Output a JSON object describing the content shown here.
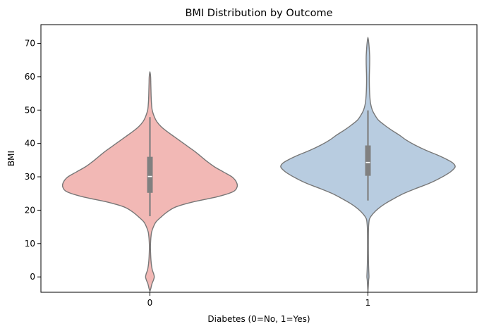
{
  "chart_data": {
    "type": "violin",
    "title": "BMI Distribution by Outcome",
    "xlabel": "Diabetes (0=No, 1=Yes)",
    "ylabel": "BMI",
    "categories": [
      "0",
      "1"
    ],
    "ylim": [
      -4.6,
      75.6
    ],
    "yticks": [
      0,
      10,
      20,
      30,
      40,
      50,
      60,
      70
    ],
    "grid": false,
    "colors": {
      "0": "#f2b8b5",
      "1": "#b8cce0",
      "outline": "#777777",
      "box": "#808080",
      "median": "#ffffff"
    },
    "violins": [
      {
        "category": "0",
        "color": "#f2b8b5",
        "box": {
          "whisker_low": 18.2,
          "q1": 25.2,
          "median": 30.1,
          "q3": 36.0,
          "whisker_high": 47.9
        },
        "profile": [
          [
            -4.3,
            0.0
          ],
          [
            -3.5,
            0.01
          ],
          [
            -2.0,
            0.024
          ],
          [
            -1.0,
            0.04
          ],
          [
            0.0,
            0.05
          ],
          [
            1.0,
            0.042
          ],
          [
            2.0,
            0.028
          ],
          [
            3.5,
            0.018
          ],
          [
            5.0,
            0.012
          ],
          [
            7.0,
            0.008
          ],
          [
            9.0,
            0.006
          ],
          [
            10.5,
            0.008
          ],
          [
            12.0,
            0.012
          ],
          [
            13.5,
            0.02
          ],
          [
            15.0,
            0.04
          ],
          [
            16.5,
            0.07
          ],
          [
            18.0,
            0.13
          ],
          [
            19.5,
            0.2
          ],
          [
            21.0,
            0.3
          ],
          [
            22.5,
            0.5
          ],
          [
            24.0,
            0.77
          ],
          [
            25.5,
            0.95
          ],
          [
            27.0,
            1.0
          ],
          [
            28.5,
            0.99
          ],
          [
            30.0,
            0.94
          ],
          [
            31.5,
            0.84
          ],
          [
            33.0,
            0.74
          ],
          [
            34.5,
            0.66
          ],
          [
            36.0,
            0.59
          ],
          [
            37.5,
            0.52
          ],
          [
            39.0,
            0.44
          ],
          [
            40.5,
            0.36
          ],
          [
            42.0,
            0.28
          ],
          [
            43.5,
            0.2
          ],
          [
            45.0,
            0.13
          ],
          [
            46.5,
            0.08
          ],
          [
            48.0,
            0.05
          ],
          [
            50.0,
            0.026
          ],
          [
            52.0,
            0.018
          ],
          [
            54.0,
            0.014
          ],
          [
            56.0,
            0.012
          ],
          [
            58.0,
            0.01
          ],
          [
            60.0,
            0.008
          ],
          [
            61.5,
            0.0
          ]
        ]
      },
      {
        "category": "1",
        "color": "#b8cce0",
        "box": {
          "whisker_low": 22.9,
          "q1": 30.3,
          "median": 34.3,
          "q3": 39.4,
          "whisker_high": 49.9
        },
        "profile": [
          [
            -4.7,
            0.0
          ],
          [
            -3.0,
            0.004
          ],
          [
            -1.0,
            0.008
          ],
          [
            0.0,
            0.012
          ],
          [
            1.5,
            0.01
          ],
          [
            3.0,
            0.008
          ],
          [
            5.0,
            0.006
          ],
          [
            8.0,
            0.005
          ],
          [
            11.0,
            0.005
          ],
          [
            14.0,
            0.006
          ],
          [
            16.0,
            0.01
          ],
          [
            17.5,
            0.02
          ],
          [
            19.0,
            0.06
          ],
          [
            20.5,
            0.12
          ],
          [
            22.0,
            0.2
          ],
          [
            23.5,
            0.3
          ],
          [
            25.0,
            0.41
          ],
          [
            26.5,
            0.55
          ],
          [
            28.0,
            0.7
          ],
          [
            29.5,
            0.82
          ],
          [
            31.0,
            0.92
          ],
          [
            32.0,
            0.97
          ],
          [
            33.0,
            1.0
          ],
          [
            34.0,
            0.98
          ],
          [
            35.0,
            0.92
          ],
          [
            36.5,
            0.8
          ],
          [
            38.0,
            0.66
          ],
          [
            39.5,
            0.54
          ],
          [
            41.0,
            0.44
          ],
          [
            42.5,
            0.36
          ],
          [
            44.0,
            0.27
          ],
          [
            45.5,
            0.19
          ],
          [
            47.0,
            0.12
          ],
          [
            48.5,
            0.08
          ],
          [
            50.0,
            0.05
          ],
          [
            52.0,
            0.03
          ],
          [
            54.0,
            0.022
          ],
          [
            56.0,
            0.018
          ],
          [
            58.0,
            0.016
          ],
          [
            60.0,
            0.016
          ],
          [
            62.0,
            0.018
          ],
          [
            64.0,
            0.02
          ],
          [
            66.0,
            0.02
          ],
          [
            68.0,
            0.016
          ],
          [
            70.0,
            0.01
          ],
          [
            71.8,
            0.0
          ]
        ]
      }
    ]
  }
}
